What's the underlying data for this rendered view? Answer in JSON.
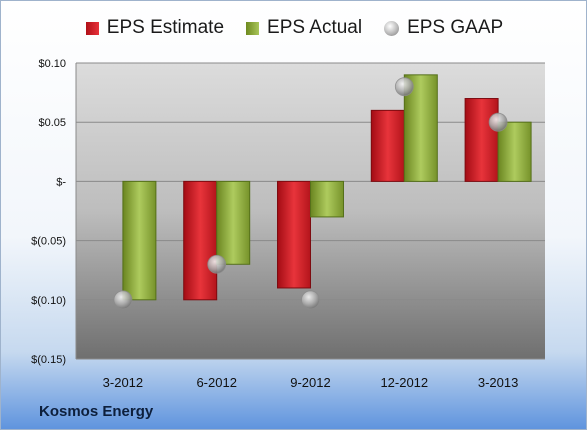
{
  "legend": {
    "estimate_label": "EPS Estimate",
    "actual_label": "EPS Actual",
    "gaap_label": "EPS GAAP"
  },
  "footer": {
    "company": "Kosmos Energy"
  },
  "colors": {
    "estimate": "#d42a2f",
    "actual": "#8fae3e",
    "gaap": "#a8a8a8"
  },
  "chart_data": {
    "type": "bar",
    "categories": [
      "3-2012",
      "6-2012",
      "9-2012",
      "12-2012",
      "3-2013"
    ],
    "series": [
      {
        "name": "EPS Estimate",
        "values": [
          null,
          -0.1,
          -0.09,
          0.06,
          0.07
        ]
      },
      {
        "name": "EPS Actual",
        "values": [
          -0.1,
          -0.07,
          -0.03,
          0.09,
          0.05
        ]
      },
      {
        "name": "EPS GAAP",
        "values": [
          -0.1,
          -0.07,
          -0.1,
          0.08,
          0.05
        ]
      }
    ],
    "ylim": [
      -0.15,
      0.1
    ],
    "yticks": [
      0.1,
      0.05,
      0,
      -0.05,
      -0.1,
      -0.15
    ],
    "ytick_labels": [
      "$0.10",
      "$0.05",
      "$-",
      "$(0.05)",
      "$(0.10)",
      "$(0.15)"
    ],
    "grid": true,
    "legend_position": "top"
  }
}
